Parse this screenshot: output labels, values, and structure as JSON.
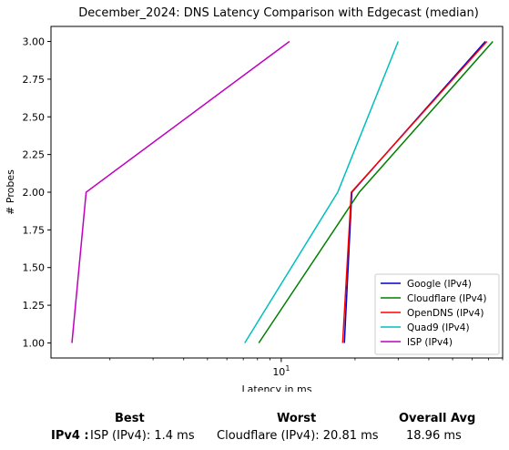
{
  "chart_data": {
    "type": "line",
    "title": "December_2024: DNS Latency Comparison with Edgecast (median)",
    "xlabel": "Latency in ms",
    "ylabel": "# Probes",
    "xscale": "log",
    "xlim": [
      1.15,
      80
    ],
    "ylim": [
      0.9,
      3.1
    ],
    "x_tick_labels": [
      "10^1"
    ],
    "y_ticks": [
      "1.00",
      "1.25",
      "1.50",
      "1.75",
      "2.00",
      "2.25",
      "2.50",
      "2.75",
      "3.00"
    ],
    "legend_position": "lower-right",
    "series": [
      {
        "name": "Google (IPv4)",
        "color": "#0000cc",
        "points": [
          [
            18.1,
            1
          ],
          [
            19.4,
            2
          ],
          [
            68,
            3
          ]
        ]
      },
      {
        "name": "Cloudflare (IPv4)",
        "color": "#008000",
        "points": [
          [
            8.1,
            1
          ],
          [
            20.81,
            2
          ],
          [
            73,
            3
          ]
        ]
      },
      {
        "name": "OpenDNS (IPv4)",
        "color": "#ff0000",
        "points": [
          [
            17.8,
            1
          ],
          [
            19.3,
            2
          ],
          [
            69,
            3
          ]
        ]
      },
      {
        "name": "Quad9 (IPv4)",
        "color": "#00bfbf",
        "points": [
          [
            7.1,
            1
          ],
          [
            17.0,
            2
          ],
          [
            30,
            3
          ]
        ]
      },
      {
        "name": "ISP (IPv4)",
        "color": "#bf00bf",
        "points": [
          [
            1.4,
            1
          ],
          [
            1.6,
            2
          ],
          [
            10.8,
            3
          ]
        ]
      }
    ]
  },
  "summary": {
    "best_header": "Best",
    "worst_header": "Worst",
    "avg_header": "Overall Avg",
    "row_label": "IPv4 :",
    "best_value": "ISP (IPv4): 1.4 ms",
    "worst_value": "Cloudflare (IPv4): 20.81 ms",
    "avg_value": "18.96 ms"
  }
}
